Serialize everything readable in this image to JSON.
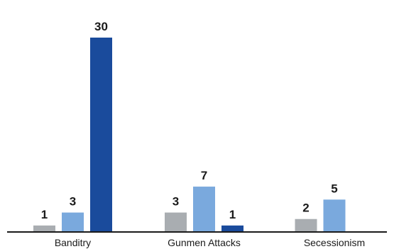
{
  "chart_data": {
    "type": "bar",
    "categories": [
      "Banditry",
      "Gunmen Attacks",
      "Secessionism"
    ],
    "series": [
      {
        "values": [
          1,
          3,
          2
        ],
        "color": "#a9adb1"
      },
      {
        "values": [
          3,
          7,
          5
        ],
        "color": "#7aa9dd"
      },
      {
        "values": [
          30,
          1,
          null
        ],
        "color": "#1a4b9c"
      }
    ],
    "value_labels": true,
    "grid": false,
    "legend": "none",
    "ylim": [
      0,
      30
    ]
  }
}
